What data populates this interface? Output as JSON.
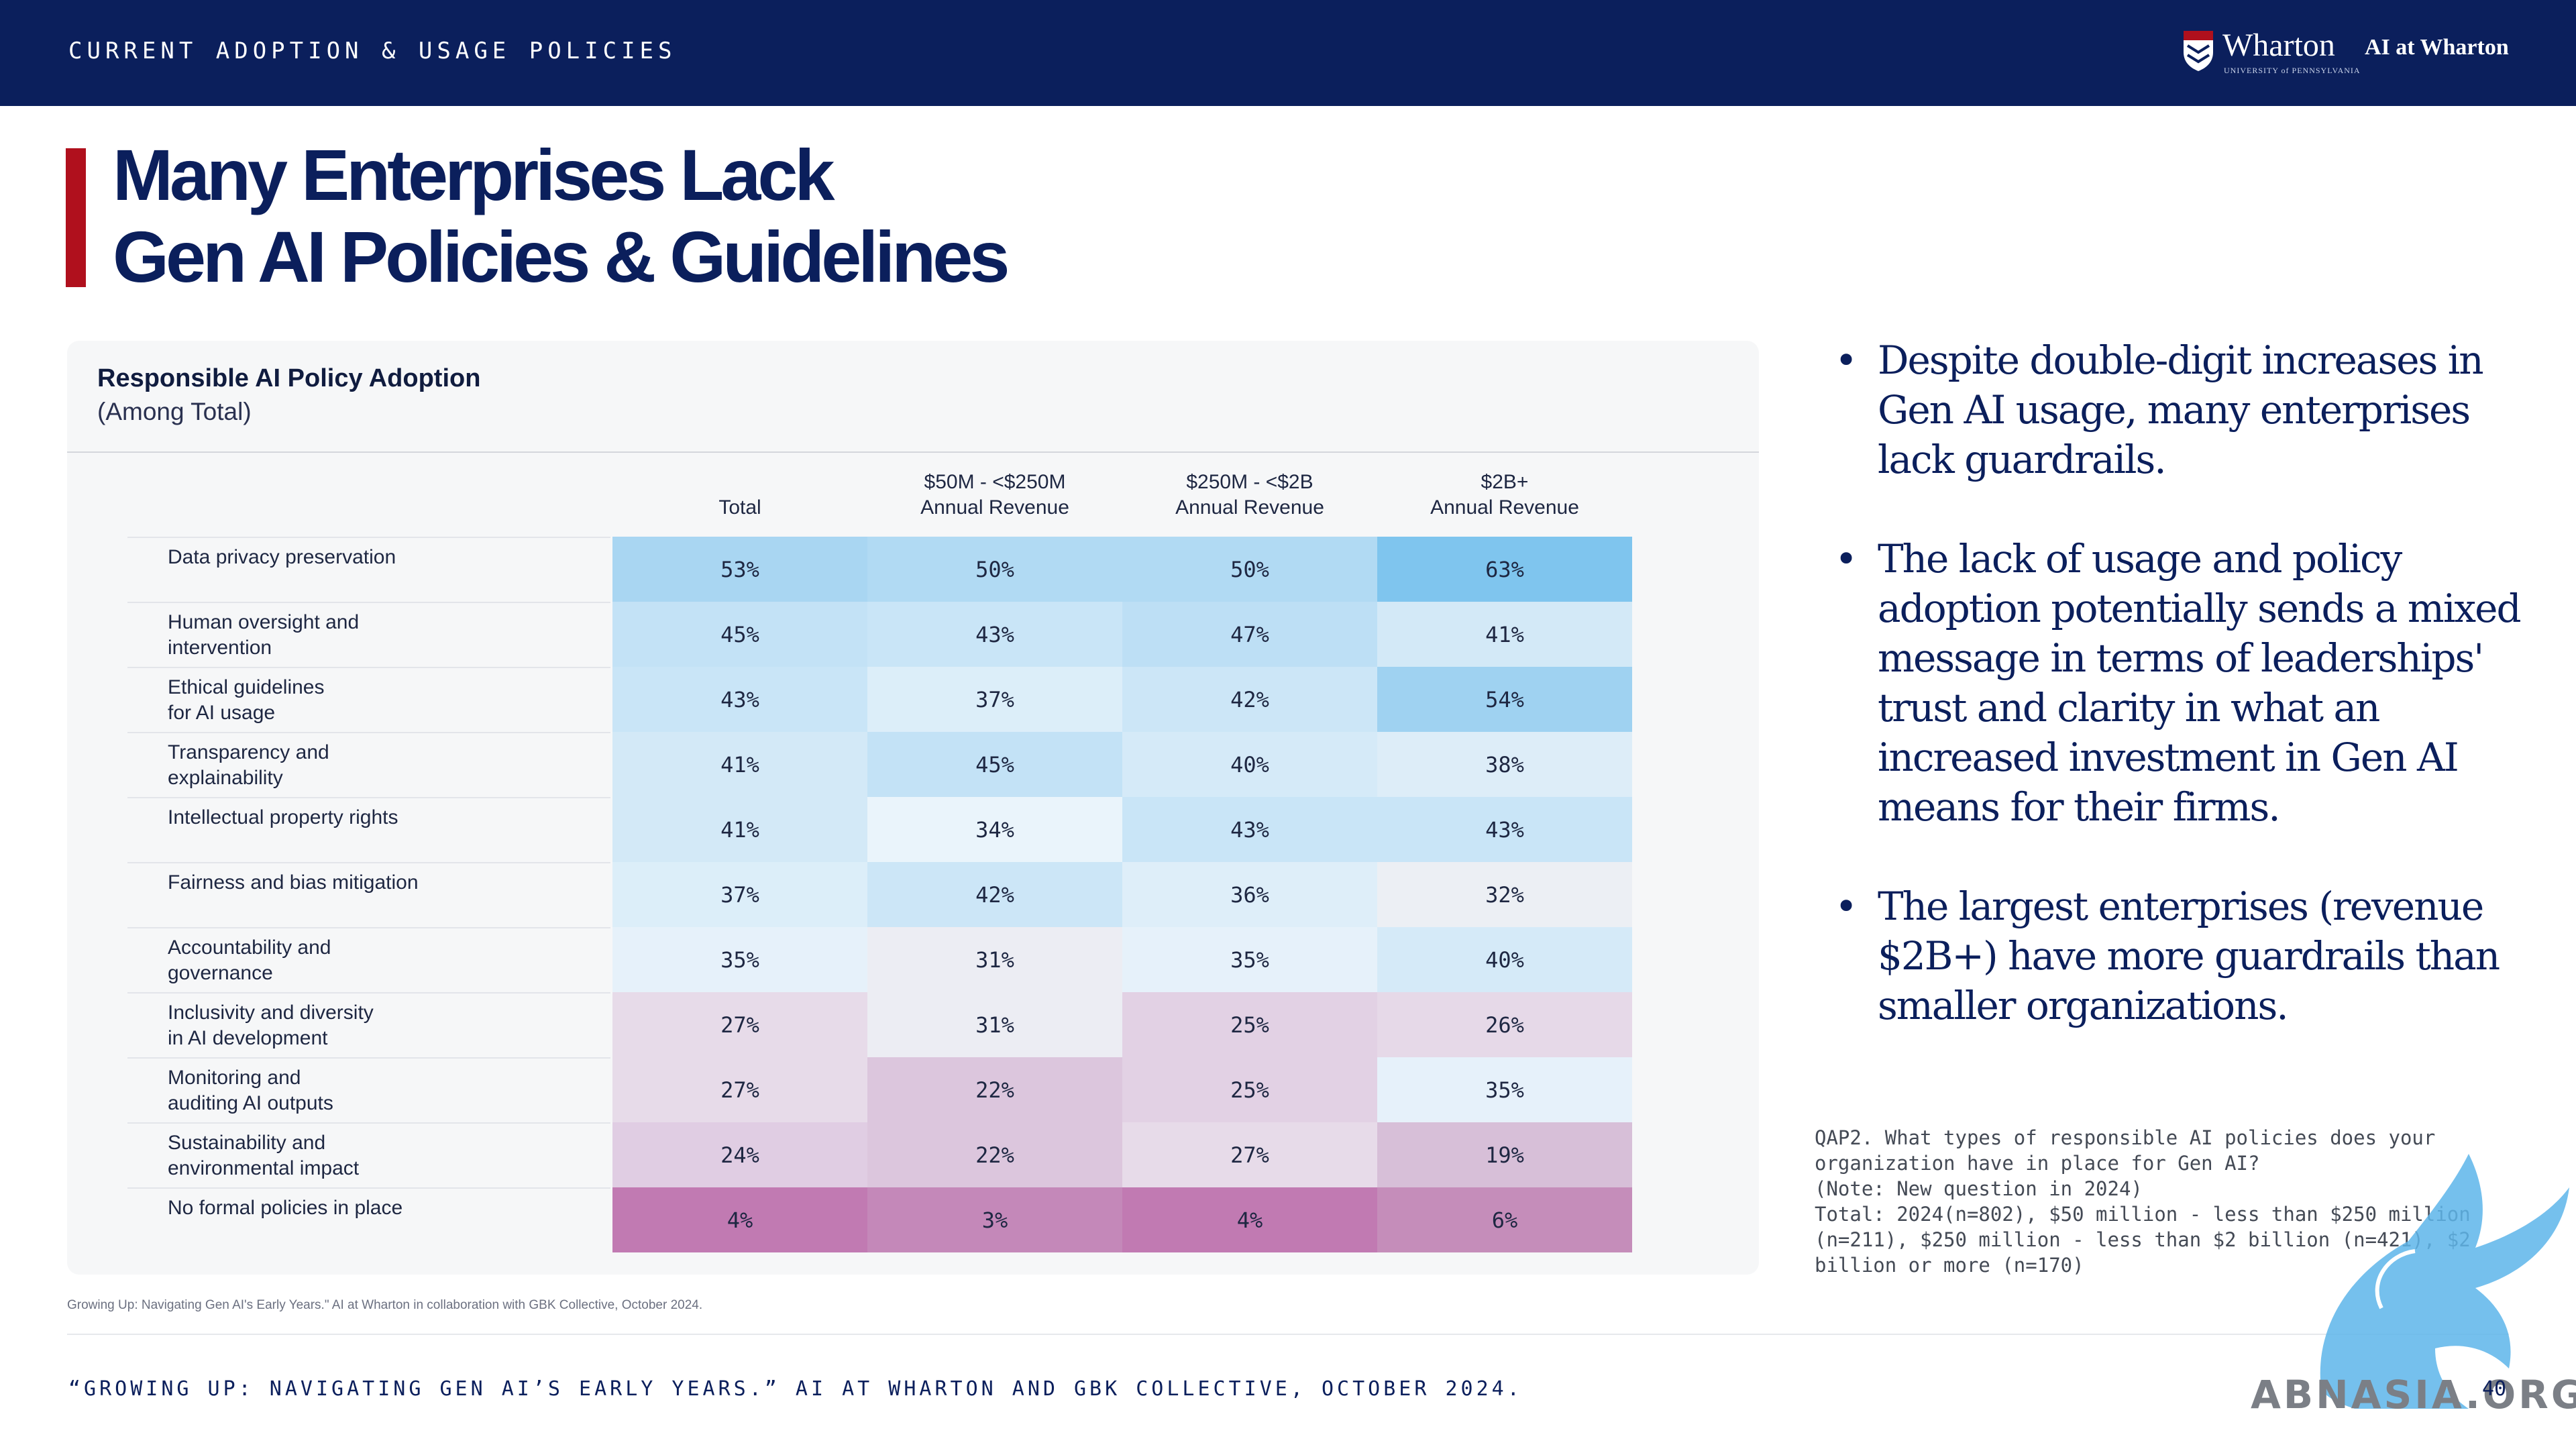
{
  "header": {
    "section_label": "CURRENT ADOPTION & USAGE POLICIES",
    "logo_name": "Wharton",
    "logo_sub": "UNIVERSITY of PENNSYLVANIA",
    "logo_ai": "AI at Wharton"
  },
  "title": {
    "line1": "Many Enterprises Lack",
    "line2": "Gen AI Policies & Guidelines"
  },
  "table": {
    "title": "Responsible AI Policy Adoption",
    "subtitle": "(Among Total)",
    "columns": [
      {
        "line1": "",
        "line2": "Total"
      },
      {
        "line1": "$50M - <$250M",
        "line2": "Annual Revenue"
      },
      {
        "line1": "$250M - <$2B",
        "line2": "Annual Revenue"
      },
      {
        "line1": "$2B+",
        "line2": "Annual Revenue"
      }
    ],
    "rows": [
      {
        "label": "Data privacy preservation",
        "values": [
          "53%",
          "50%",
          "50%",
          "63%"
        ]
      },
      {
        "label": "Human oversight and\nintervention",
        "values": [
          "45%",
          "43%",
          "47%",
          "41%"
        ]
      },
      {
        "label": "Ethical guidelines\nfor AI usage",
        "values": [
          "43%",
          "37%",
          "42%",
          "54%"
        ]
      },
      {
        "label": "Transparency and\nexplainability",
        "values": [
          "41%",
          "45%",
          "40%",
          "38%"
        ]
      },
      {
        "label": "Intellectual property rights",
        "values": [
          "41%",
          "34%",
          "43%",
          "43%"
        ]
      },
      {
        "label": "Fairness and bias mitigation",
        "values": [
          "37%",
          "42%",
          "36%",
          "32%"
        ]
      },
      {
        "label": "Accountability and\ngovernance",
        "values": [
          "35%",
          "31%",
          "35%",
          "40%"
        ]
      },
      {
        "label": "Inclusivity and diversity\nin AI development",
        "values": [
          "27%",
          "31%",
          "25%",
          "26%"
        ]
      },
      {
        "label": "Monitoring and\nauditing AI outputs",
        "values": [
          "27%",
          "22%",
          "25%",
          "35%"
        ]
      },
      {
        "label": "Sustainability and\nenvironmental impact",
        "values": [
          "24%",
          "22%",
          "27%",
          "19%"
        ]
      },
      {
        "label": "No formal policies in place",
        "values": [
          "4%",
          "3%",
          "4%",
          "6%"
        ]
      }
    ],
    "cell_colors": [
      [
        "#a9d6f2",
        "#b1daf3",
        "#b1daf3",
        "#7fc5ee"
      ],
      [
        "#c3e2f6",
        "#c9e5f7",
        "#bddff5",
        "#d3e9f7"
      ],
      [
        "#c9e5f7",
        "#dceef9",
        "#cce6f7",
        "#9fd2f1"
      ],
      [
        "#d3e9f7",
        "#c3e2f6",
        "#d5eaf8",
        "#ddedf8"
      ],
      [
        "#d3e9f7",
        "#eaf4fb",
        "#c9e5f7",
        "#c9e5f7"
      ],
      [
        "#dceef9",
        "#cce6f7",
        "#deeef9",
        "#eceff4"
      ],
      [
        "#e6f1fa",
        "#ecedf3",
        "#e6f1fa",
        "#d5eaf8"
      ],
      [
        "#e7dbe9",
        "#ecedf3",
        "#e2d1e4",
        "#e6d9e8"
      ],
      [
        "#e7dbe9",
        "#dcc6dd",
        "#e2d1e4",
        "#e6f1fa"
      ],
      [
        "#e0cde3",
        "#dcc6dd",
        "#e7dbe9",
        "#d7bfd8"
      ],
      [
        "#c17ab2",
        "#c488b9",
        "#c17ab2",
        "#c58dba"
      ]
    ],
    "caption": "Growing Up: Navigating Gen AI's Early Years.\" AI at Wharton in collaboration with GBK Collective, October 2024."
  },
  "bullets": [
    "Despite double-digit increases in Gen AI usage, many enterprises lack guardrails.",
    "The lack of usage and policy adoption potentially sends a mixed message in terms of leaderships' trust and clarity in what an increased investment in Gen AI means for their firms.",
    "The largest enterprises (revenue $2B+) have more guardrails than smaller organizations."
  ],
  "note": "QAP2. What types of responsible AI policies does your organization have in place for Gen AI?\n(Note: New question in 2024)\nTotal: 2024(n=802), $50 million - less than $250 million (n=211), $250 million - less than $2 billion (n=421), $2 billion or more (n=170)",
  "footer": {
    "citation": "“GROWING UP: NAVIGATING GEN AI’S EARLY YEARS.” AI AT WHARTON AND GBK COLLECTIVE, OCTOBER 2024.",
    "page": "40",
    "watermark": "ABNASIA.ORG"
  }
}
